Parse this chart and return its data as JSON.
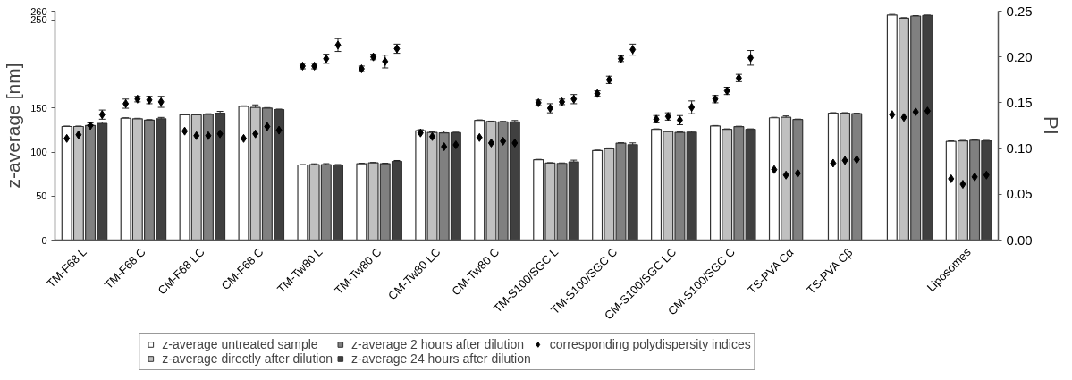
{
  "chart_data": {
    "type": "bar",
    "categories": [
      "TM-F68 L",
      "TM-F68 C",
      "CM-F68 LC",
      "CM-F68 C",
      "TM-Tw80 L",
      "TM-Tw80 C",
      "CM-Tw80 LC",
      "CM-Tw80 C",
      "TM-S100/SGC L",
      "TM-S100/SGC C",
      "CM-S100/SGC LC",
      "CM-S100/SGC C",
      "TS-PVA Cα",
      "TS-PVA Cβ",
      null,
      "Liposomes"
    ],
    "ylabel": "z-average [nm]",
    "y2label": "PI",
    "ylim": [
      0,
      260
    ],
    "yticks": [
      0,
      50,
      100,
      150,
      250,
      260
    ],
    "y2lim": [
      0,
      0.25
    ],
    "y2ticks": [
      {
        "value": 0,
        "label": "0.00"
      },
      0.05,
      {
        "value": 0.1,
        "label": "0.10"
      },
      0.15,
      {
        "value": 0.2,
        "label": "0.20"
      },
      0.25
    ],
    "marker": "diamond",
    "legend": "bottom",
    "series": [
      {
        "name": "z-average untreated sample",
        "color": "#ffffff",
        "values": [
          129,
          138.4,
          142.4,
          152,
          85.3,
          86.8,
          124.4,
          136,
          91.2,
          101.7,
          125.8,
          129.6,
          138.9,
          144.2,
          255.6,
          112.2
        ],
        "errors": [
          0.5,
          0.5,
          0.5,
          0.5,
          0.5,
          0.5,
          1,
          0.5,
          0.5,
          0.5,
          0.5,
          0.5,
          0.5,
          0.5,
          0.7,
          0.5
        ]
      },
      {
        "name": "z-average directly after dilution",
        "color": "#c0c0c0",
        "values": [
          129,
          137.8,
          142.2,
          150.6,
          85.6,
          87.7,
          122.3,
          134.6,
          87.4,
          103.7,
          123.2,
          125.8,
          139.5,
          144.2,
          252,
          112.7
        ],
        "errors": [
          0.5,
          0.5,
          0.5,
          3,
          1,
          0.5,
          0.5,
          0.5,
          0.5,
          1,
          0.5,
          0.5,
          1.5,
          0.5,
          0.5,
          0.5
        ]
      },
      {
        "name": "z-average 2 hours after dilution",
        "color": "#808080",
        "values": [
          130.2,
          136.3,
          142.7,
          150,
          85.6,
          86.8,
          121.8,
          134.3,
          87.1,
          110.1,
          122.3,
          128.8,
          136.9,
          143.6,
          254.4,
          113.3
        ],
        "errors": [
          0.8,
          0.5,
          0.8,
          0.5,
          1.2,
          0.5,
          2,
          0.5,
          0.5,
          0.5,
          0.5,
          0.5,
          0.5,
          0.5,
          0.5,
          0.5
        ]
      },
      {
        "name": "z-average 24 hours after dilution",
        "color": "#404040",
        "values": [
          132.5,
          137.8,
          144.2,
          148.3,
          85.3,
          89.4,
          122,
          134.3,
          88.8,
          108.4,
          122.6,
          125.8,
          null,
          null,
          255,
          112.7
        ],
        "errors": [
          1.5,
          1.5,
          2,
          0.5,
          0.5,
          1,
          0.5,
          1.5,
          2,
          2,
          1,
          0.5,
          null,
          null,
          0.5,
          0.5
        ]
      },
      {
        "name": "corresponding polydispersity indices",
        "type": "scatter",
        "axis": "y2",
        "color": "#000000",
        "values": [
          0.111,
          0.149,
          0.119,
          0.111,
          0.19,
          0.187,
          0.117,
          0.112,
          0.15,
          0.16,
          0.132,
          0.154,
          0.077,
          0.084,
          0.137,
          0.067
        ],
        "errors": [
          0.003,
          0.005,
          0.003,
          0.003,
          0.003,
          0.003,
          0.003,
          0.005,
          0.003,
          0.003,
          0.004,
          0.004,
          0.003,
          0.005,
          0.006,
          0.004
        ]
      },
      {
        "type": "scatter",
        "axis": "y2",
        "color": "#000000",
        "values": [
          0.115,
          0.154,
          0.114,
          0.116,
          0.19,
          0.2,
          0.113,
          0.106,
          0.144,
          0.175,
          0.135,
          0.163,
          0.071,
          0.087,
          0.134,
          0.061
        ],
        "errors": [
          0.006,
          0.003,
          0.005,
          0.004,
          0.003,
          0.003,
          0.006,
          0.003,
          0.005,
          0.004,
          0.004,
          0.004,
          0.004,
          0.002,
          0.006,
          0.002
        ]
      },
      {
        "type": "scatter",
        "axis": "y2",
        "color": "#000000",
        "values": [
          0.125,
          0.153,
          0.114,
          0.124,
          0.198,
          0.195,
          0.102,
          0.108,
          0.151,
          0.198,
          0.131,
          0.177,
          0.073,
          0.088,
          0.14,
          0.069
        ],
        "errors": [
          0.003,
          0.004,
          0.005,
          0.007,
          0.005,
          0.007,
          0.003,
          0.003,
          0.003,
          0.003,
          0.005,
          0.004,
          0.003,
          0.007,
          0.003,
          0.004
        ]
      },
      {
        "type": "scatter",
        "axis": "y2",
        "color": "#000000",
        "values": [
          0.137,
          0.151,
          0.116,
          0.12,
          0.213,
          0.209,
          0.104,
          0.106,
          0.154,
          0.208,
          0.145,
          0.199,
          null,
          null,
          0.141,
          0.071
        ],
        "errors": [
          0.005,
          0.006,
          0.003,
          0.003,
          0.007,
          0.005,
          0.003,
          0.004,
          0.005,
          0.006,
          0.007,
          0.008,
          null,
          null,
          0.008,
          0.002
        ]
      }
    ]
  }
}
